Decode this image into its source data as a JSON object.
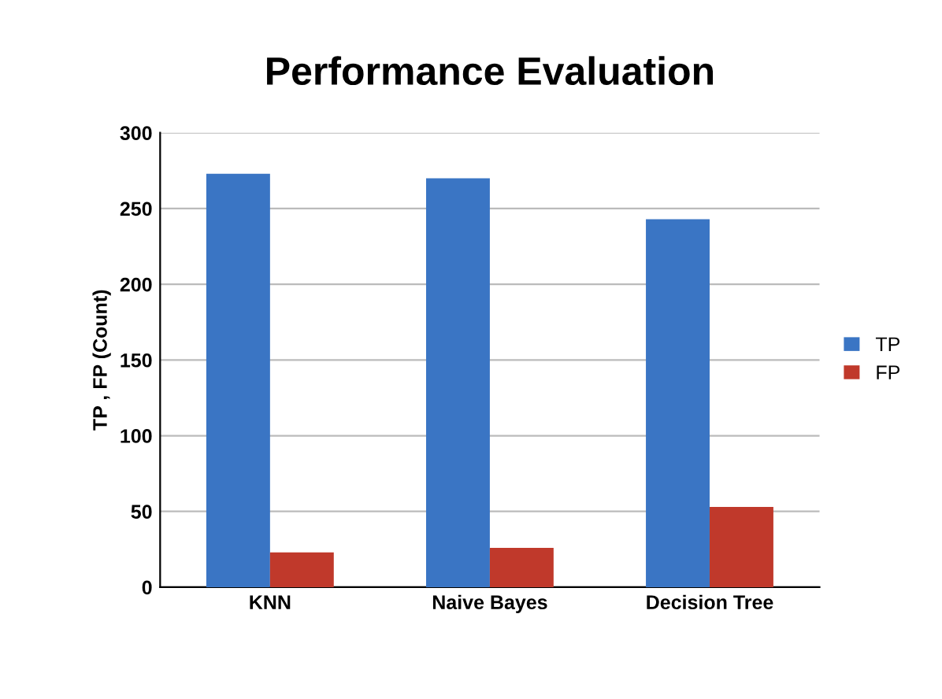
{
  "chart_data": {
    "type": "bar",
    "title": "Performance Evaluation",
    "ylabel": "TP , FP (Count)",
    "categories": [
      "KNN",
      "Naive Bayes",
      "Decision Tree"
    ],
    "series": [
      {
        "name": "TP",
        "color": "#3a75c4",
        "values": [
          273,
          270,
          243
        ]
      },
      {
        "name": "FP",
        "color": "#c0392b",
        "values": [
          23,
          26,
          53
        ]
      }
    ],
    "ylim": [
      0,
      300
    ],
    "yticks": [
      0,
      50,
      100,
      150,
      200,
      250,
      300
    ],
    "grid": "y",
    "legend": "right"
  }
}
